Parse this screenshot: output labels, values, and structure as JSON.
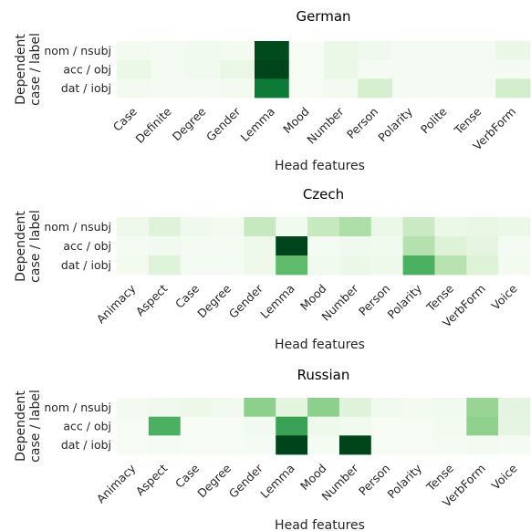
{
  "chart_data": [
    {
      "type": "heatmap",
      "title": "German",
      "xlabel": "Head features",
      "ylabel": "Dependent case / label",
      "ylabel_lines": [
        "Dependent",
        "case / label"
      ],
      "rows": [
        "nom / nsubj",
        "acc / obj",
        "dat / iobj"
      ],
      "columns": [
        "Case",
        "Definite",
        "Degree",
        "Gender",
        "Lemma",
        "Mood",
        "Number",
        "Person",
        "Polarity",
        "Polite",
        "Tense",
        "VerbForm"
      ],
      "values": [
        [
          0.03,
          0.02,
          0.04,
          0.03,
          0.98,
          0.01,
          0.08,
          0.05,
          0.02,
          0.02,
          0.02,
          0.09
        ],
        [
          0.08,
          0.02,
          0.04,
          0.09,
          1.0,
          0.01,
          0.08,
          0.02,
          0.02,
          0.02,
          0.02,
          0.02
        ],
        [
          0.03,
          0.02,
          0.02,
          0.03,
          0.82,
          0.01,
          0.03,
          0.19,
          0.02,
          0.02,
          0.02,
          0.2
        ]
      ],
      "colormap": "Greens",
      "vmin": 0,
      "vmax": 1
    },
    {
      "type": "heatmap",
      "title": "Czech",
      "xlabel": "Head features",
      "ylabel": "Dependent case / label",
      "ylabel_lines": [
        "Dependent",
        "case / label"
      ],
      "rows": [
        "nom / nsubj",
        "acc / obj",
        "dat / iobj"
      ],
      "columns": [
        "Animacy",
        "Aspect",
        "Case",
        "Degree",
        "Gender",
        "Lemma",
        "Mood",
        "Number",
        "Person",
        "Polarity",
        "Tense",
        "VerbForm",
        "Voice"
      ],
      "values": [
        [
          0.06,
          0.15,
          0.05,
          0.03,
          0.25,
          0.04,
          0.25,
          0.33,
          0.08,
          0.24,
          0.08,
          0.1,
          0.08
        ],
        [
          0.02,
          0.04,
          0.02,
          0.02,
          0.06,
          1.0,
          0.02,
          0.05,
          0.04,
          0.31,
          0.16,
          0.12,
          0.02
        ],
        [
          0.03,
          0.15,
          0.02,
          0.02,
          0.06,
          0.55,
          0.04,
          0.08,
          0.06,
          0.6,
          0.3,
          0.16,
          0.03
        ]
      ],
      "colormap": "Greens",
      "vmin": 0,
      "vmax": 1
    },
    {
      "type": "heatmap",
      "title": "Russian",
      "xlabel": "Head features",
      "ylabel": "Dependent case / label",
      "ylabel_lines": [
        "Dependent",
        "case / label"
      ],
      "rows": [
        "nom / nsubj",
        "acc / obj",
        "dat / iobj"
      ],
      "columns": [
        "Animacy",
        "Aspect",
        "Case",
        "Degree",
        "Gender",
        "Lemma",
        "Mood",
        "Number",
        "Person",
        "Polarity",
        "Tense",
        "VerbForm",
        "Voice"
      ],
      "values": [
        [
          0.03,
          0.05,
          0.07,
          0.04,
          0.43,
          0.13,
          0.43,
          0.15,
          0.04,
          0.03,
          0.04,
          0.4,
          0.13
        ],
        [
          0.01,
          0.6,
          0.01,
          0.01,
          0.04,
          0.66,
          0.06,
          0.04,
          0.01,
          0.01,
          0.03,
          0.42,
          0.12
        ],
        [
          0.01,
          0.02,
          0.01,
          0.01,
          0.02,
          1.0,
          0.02,
          1.0,
          0.01,
          0.01,
          0.02,
          0.03,
          0.02
        ]
      ],
      "colormap": "Greens",
      "vmin": 0,
      "vmax": 1
    }
  ]
}
